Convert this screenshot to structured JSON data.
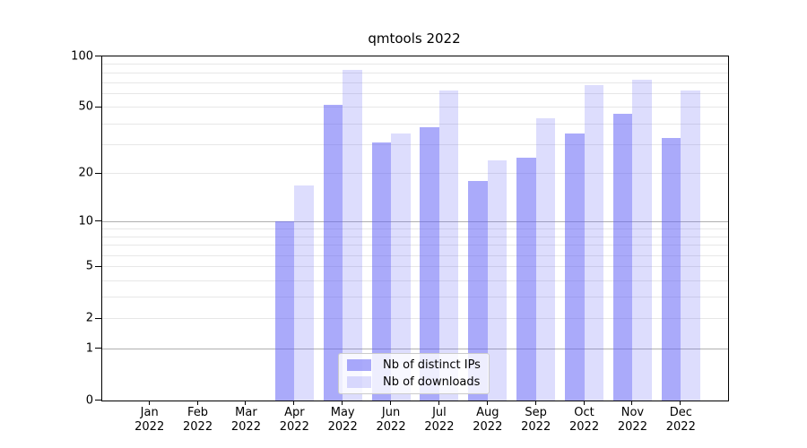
{
  "chart_data": {
    "type": "bar",
    "title": "qmtools 2022",
    "categories": [
      "Jan 2022",
      "Feb 2022",
      "Mar 2022",
      "Apr 2022",
      "May 2022",
      "Jun 2022",
      "Jul 2022",
      "Aug 2022",
      "Sep 2022",
      "Oct 2022",
      "Nov 2022",
      "Dec 2022"
    ],
    "series": [
      {
        "name": "Nb of distinct IPs",
        "color_hex": "#aaaafa",
        "color_rgba": "rgba(100,100,245,0.55)",
        "values": [
          0,
          0,
          0,
          10,
          52,
          31,
          38,
          18,
          25,
          35,
          46,
          33
        ]
      },
      {
        "name": "Nb of downloads",
        "color_hex": "#ddddfd",
        "color_rgba": "rgba(100,100,245,0.22)",
        "values": [
          0,
          0,
          0,
          17,
          83,
          35,
          63,
          24,
          43,
          68,
          73,
          63
        ]
      }
    ],
    "yscale": "log1p",
    "ylim": [
      0,
      100
    ],
    "y_tick_labels": [
      "100",
      "50",
      "20",
      "10",
      "5",
      "2",
      "1",
      "0"
    ],
    "y_tick_values": [
      100,
      50,
      20,
      10,
      5,
      2,
      1,
      0
    ],
    "y_major_gridlines": [
      1,
      10
    ],
    "y_minor_gridlines": [
      2,
      3,
      4,
      5,
      6,
      7,
      8,
      9,
      20,
      30,
      40,
      50,
      60,
      70,
      80,
      90
    ],
    "grid": "horizontal",
    "legend_position": "lower-center-inside",
    "xlabel": "",
    "ylabel": ""
  },
  "colors": {
    "background": "#ffffff",
    "axis": "#000000",
    "text": "#000000",
    "grid_major": "#b0b0b0",
    "grid_minor": "#e7e7e7",
    "legend_border": "#cccccc",
    "legend_background": "rgba(255,255,255,0.8)"
  }
}
